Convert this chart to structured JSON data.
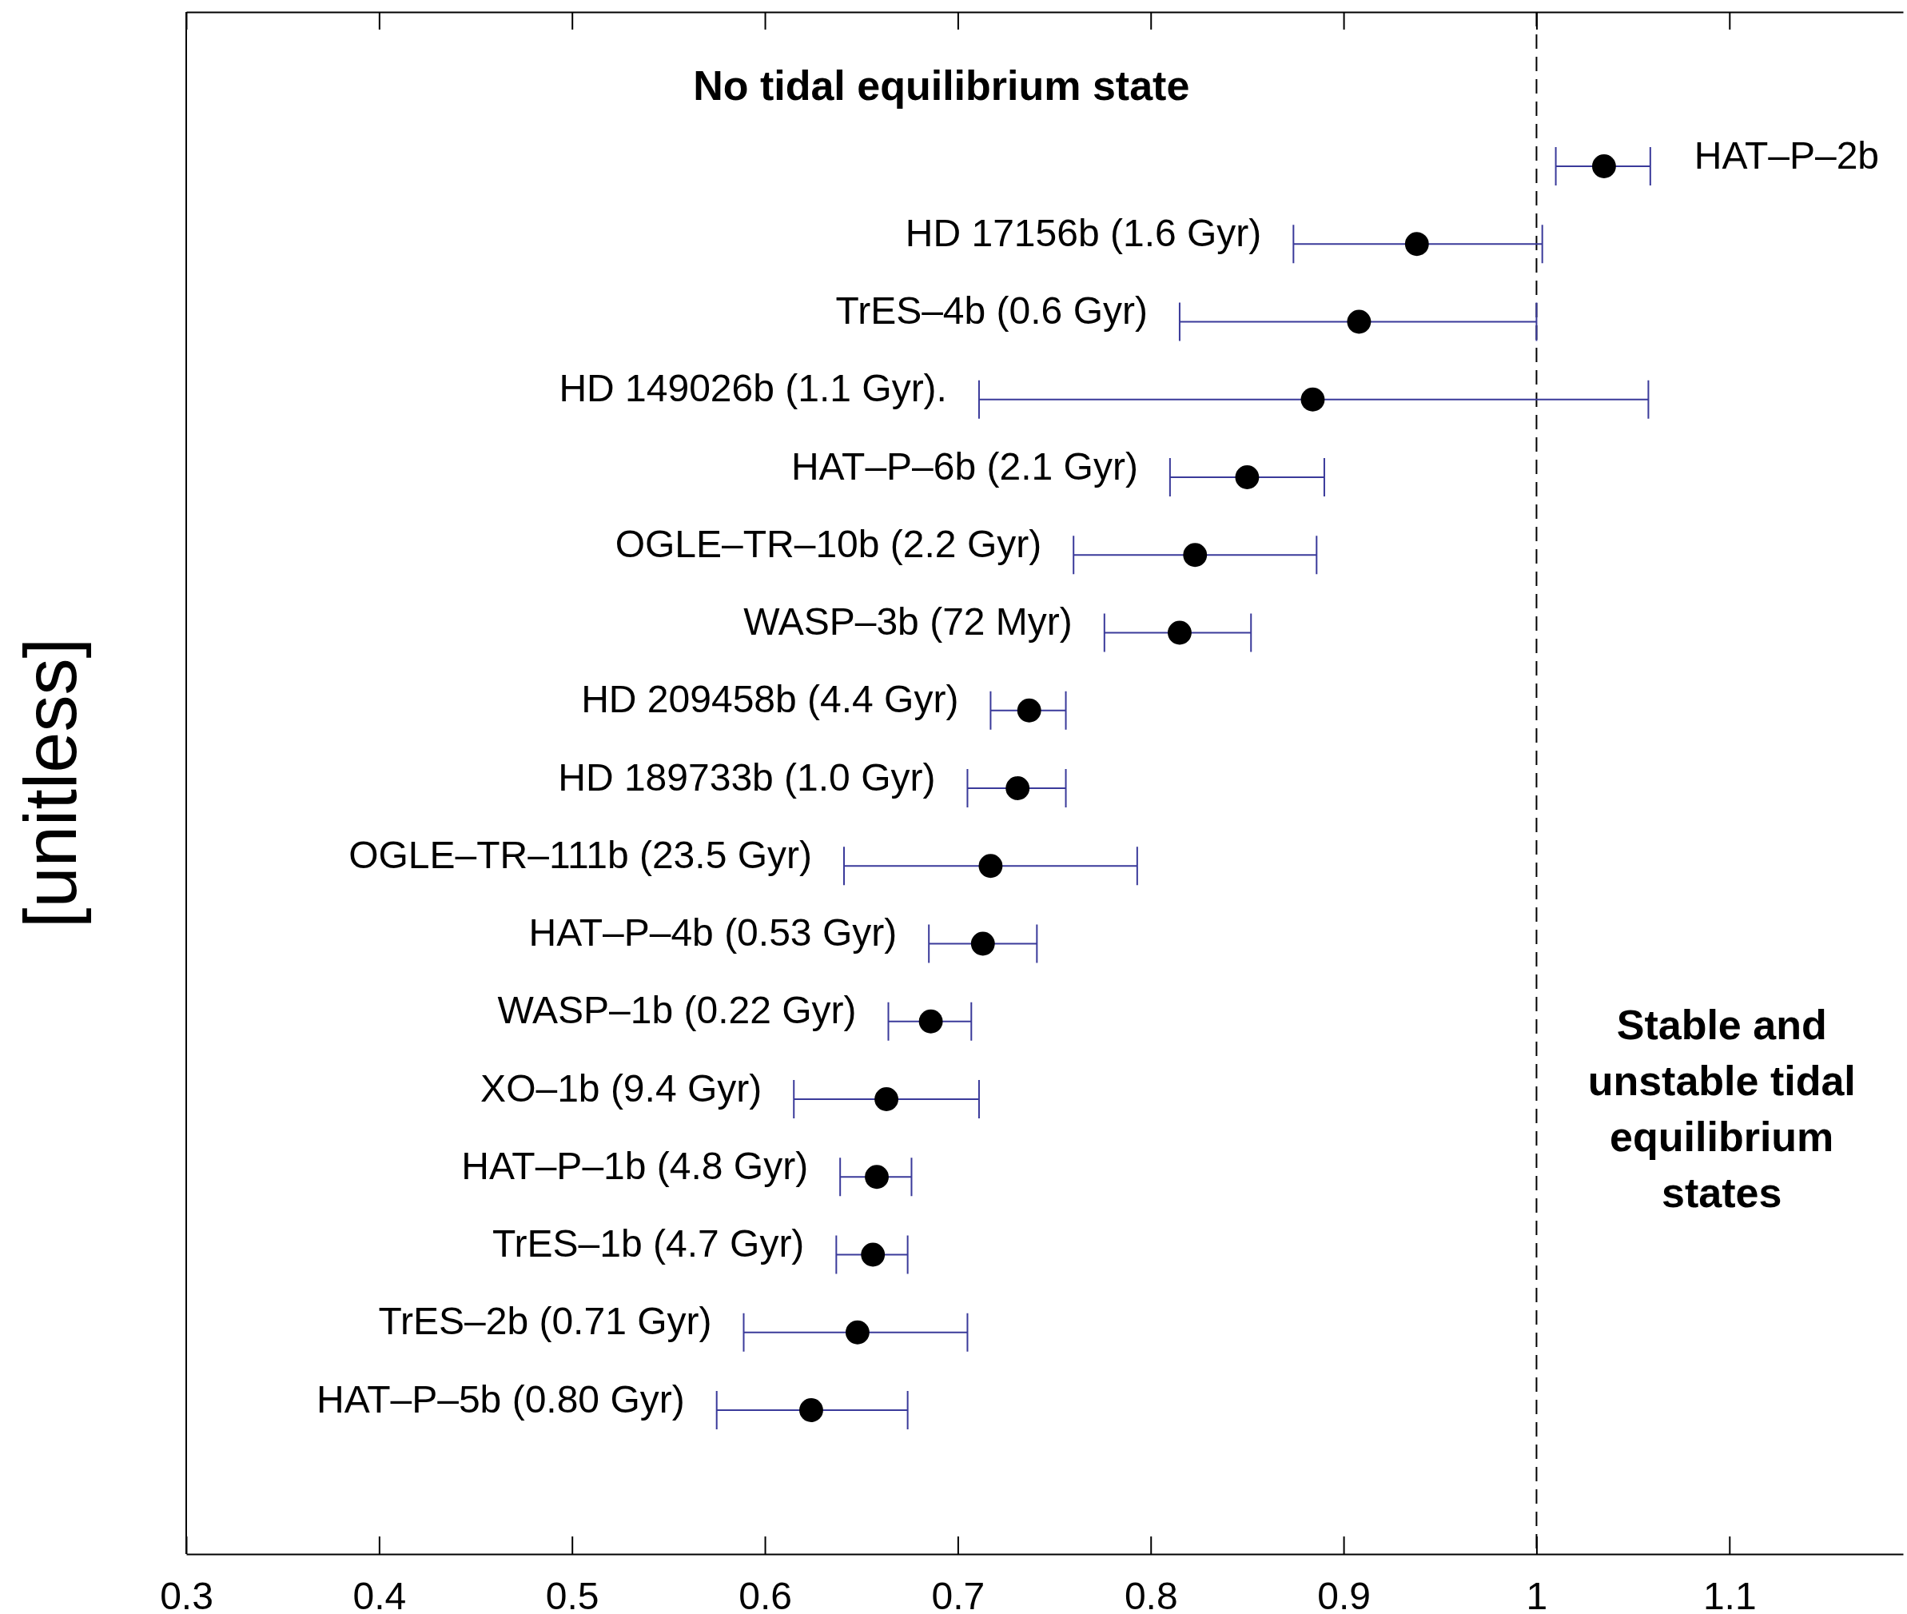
{
  "chart_data": {
    "type": "scatter",
    "orientation": "horizontal",
    "ylabel": "[unitless]",
    "categories": [
      "HAT–P–2b",
      "HD 17156b (1.6 Gyr)",
      "TrES–4b (0.6 Gyr)",
      "HD 149026b (1.1 Gyr).",
      "HAT–P–6b (2.1 Gyr)",
      "OGLE–TR–10b (2.2 Gyr)",
      "WASP–3b (72 Myr)",
      "HD 209458b (4.4 Gyr)",
      "HD 189733b (1.0 Gyr)",
      "OGLE–TR–111b (23.5 Gyr)",
      "HAT–P–4b (0.53 Gyr)",
      "WASP–1b (0.22 Gyr)",
      "XO–1b (9.4 Gyr)",
      "HAT–P–1b (4.8 Gyr)",
      "TrES–1b (4.7 Gyr)",
      "TrES–2b (0.71 Gyr)",
      "HAT–P–5b (0.80 Gyr)"
    ],
    "values": [
      1.035,
      0.938,
      0.908,
      0.884,
      0.85,
      0.823,
      0.815,
      0.737,
      0.731,
      0.717,
      0.713,
      0.686,
      0.663,
      0.658,
      0.656,
      0.648,
      0.624
    ],
    "errors": [
      [
        1.01,
        1.059
      ],
      [
        0.874,
        1.003
      ],
      [
        0.815,
        1.0
      ],
      [
        0.711,
        1.058
      ],
      [
        0.81,
        0.89
      ],
      [
        0.76,
        0.886
      ],
      [
        0.776,
        0.852
      ],
      [
        0.717,
        0.756
      ],
      [
        0.705,
        0.756
      ],
      [
        0.641,
        0.793
      ],
      [
        0.685,
        0.741
      ],
      [
        0.664,
        0.707
      ],
      [
        0.615,
        0.711
      ],
      [
        0.639,
        0.676
      ],
      [
        0.637,
        0.674
      ],
      [
        0.589,
        0.705
      ],
      [
        0.575,
        0.674
      ]
    ],
    "color": "#000000",
    "marker": "circle",
    "xlim": [
      0.3,
      1.19
    ],
    "xticks": [
      0.3,
      0.4,
      0.5,
      0.6,
      0.7,
      0.8,
      0.9,
      1,
      1.1
    ],
    "ref_lines": [
      {
        "axis": "x",
        "value": 1,
        "line_style": "dashed",
        "color": "#000000"
      }
    ],
    "annotations": [
      "No tidal equilibrium state",
      "Stable and unstable tidal equilibrium states"
    ]
  }
}
